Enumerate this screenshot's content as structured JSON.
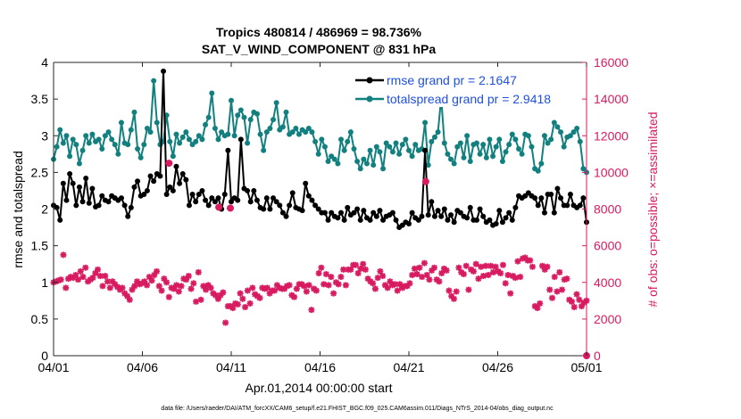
{
  "chart_data": {
    "type": "line",
    "title": "Tropics 480814 / 486969 = 98.736%",
    "subtitle": "SAT_V_WIND_COMPONENT @ 831 hPa",
    "xlabel": "Apr.01,2014 00:00:00 start",
    "ylabel_left": "rmse and totalspread",
    "ylabel_right": "# of obs: o=possible; ×=assimilated",
    "footnote": "data file: /Users/raeder/DAI/ATM_forcXX/CAM6_setup/f.e21.FHIST_BGC.f09_025.CAM6assim.011/Diags_NTrS_2014-04/obs_diag_output.nc",
    "x_ticks": [
      "04/01",
      "04/06",
      "04/11",
      "04/16",
      "04/21",
      "04/26",
      "05/01"
    ],
    "x_tick_days": [
      0,
      5,
      10,
      15,
      20,
      25,
      30
    ],
    "xlim_days": [
      0,
      30
    ],
    "ylim_left": [
      0,
      4
    ],
    "yticks_left": [
      "0",
      "0.5",
      "1",
      "1.5",
      "2",
      "2.5",
      "3",
      "3.5",
      "4"
    ],
    "ylim_right": [
      0,
      16000
    ],
    "yticks_right": [
      "0",
      "2000",
      "4000",
      "6000",
      "8000",
      "10000",
      "12000",
      "14000",
      "16000"
    ],
    "colors": {
      "rmse": "#000000",
      "spread": "#138080",
      "obs": "#d81b60",
      "legend_text": "#1f4fe0"
    },
    "x_step_days": 0.25,
    "series": [
      {
        "name": "rmse grand pr = 2.1647",
        "axis": "left",
        "values": [
          2.05,
          2.02,
          1.85,
          2.35,
          2.12,
          2.48,
          2.35,
          2.05,
          2.3,
          2.1,
          2.42,
          2.08,
          2.28,
          2.03,
          2.05,
          2.18,
          2.12,
          2.1,
          2.18,
          2.15,
          2.12,
          2.15,
          2.05,
          1.9,
          2.02,
          2.3,
          2.38,
          2.18,
          2.2,
          2.25,
          2.45,
          2.38,
          2.48,
          2.45,
          3.88,
          2.2,
          2.3,
          2.25,
          2.58,
          2.35,
          2.48,
          2.4,
          2.05,
          2.2,
          2.1,
          2.2,
          2.25,
          2.12,
          2.05,
          2.15,
          2.1,
          2.15,
          2.0,
          2.2,
          2.8,
          2.1,
          2.15,
          2.12,
          2.95,
          2.28,
          2.25,
          2.1,
          2.25,
          2.12,
          2.02,
          2.0,
          2.15,
          2.0,
          2.15,
          2.1,
          2.05,
          1.95,
          1.9,
          2.05,
          2.22,
          2.02,
          2.0,
          1.98,
          2.35,
          2.18,
          2.12,
          2.05,
          2.0,
          1.95,
          1.95,
          1.85,
          1.95,
          1.9,
          1.88,
          1.95,
          1.85,
          2.02,
          1.92,
          1.95,
          2.0,
          1.85,
          1.98,
          1.88,
          1.85,
          1.95,
          1.9,
          1.98,
          1.85,
          1.9,
          1.92,
          1.95,
          1.85,
          1.75,
          1.78,
          1.82,
          1.8,
          1.95,
          1.88,
          1.85,
          1.9,
          2.8,
          1.92,
          2.1,
          1.9,
          1.98,
          1.9,
          2.0,
          1.85,
          1.92,
          1.82,
          1.98,
          1.95,
          1.9,
          1.88,
          2.02,
          1.85,
          1.85,
          2.0,
          1.9,
          1.82,
          1.85,
          1.78,
          1.8,
          1.98,
          1.82,
          1.88,
          1.95,
          1.85,
          2.02,
          2.18,
          2.15,
          2.18,
          2.22,
          2.18,
          2.15,
          2.05,
          2.15,
          1.95,
          2.2,
          2.2,
          1.95,
          2.28,
          2.15,
          2.05,
          2.05,
          2.2,
          2.05,
          2.02,
          2.05,
          2.15,
          1.82
        ]
      },
      {
        "name": "totalspread grand pr = 2.9418",
        "axis": "left",
        "values": [
          2.68,
          2.85,
          3.08,
          2.9,
          3.0,
          2.72,
          2.95,
          2.88,
          2.62,
          2.8,
          3.0,
          2.9,
          3.02,
          2.92,
          2.95,
          2.82,
          3.0,
          3.05,
          2.95,
          2.88,
          2.75,
          3.18,
          2.9,
          2.88,
          3.08,
          3.32,
          2.82,
          2.7,
          2.88,
          3.1,
          3.05,
          3.75,
          3.18,
          2.88,
          2.92,
          3.28,
          2.92,
          2.72,
          3.02,
          2.9,
          2.98,
          3.05,
          2.95,
          2.88,
          2.92,
          3.0,
          2.95,
          3.15,
          3.25,
          3.58,
          3.1,
          2.95,
          3.05,
          3.0,
          3.02,
          3.48,
          3.0,
          3.28,
          3.35,
          3.25,
          2.9,
          3.22,
          3.32,
          3.3,
          3.02,
          2.8,
          3.05,
          3.1,
          3.22,
          3.45,
          3.08,
          3.12,
          3.32,
          3.02,
          3.05,
          3.1,
          3.02,
          3.08,
          3.05,
          3.1,
          3.05,
          2.92,
          2.75,
          2.95,
          2.85,
          2.65,
          2.72,
          2.68,
          2.62,
          2.95,
          2.8,
          2.92,
          3.05,
          2.82,
          2.65,
          2.55,
          2.68,
          2.62,
          2.8,
          2.6,
          2.85,
          2.78,
          2.55,
          2.9,
          2.85,
          2.78,
          2.9,
          2.75,
          2.88,
          2.95,
          2.8,
          2.72,
          2.88,
          2.8,
          2.82,
          3.18,
          2.6,
          2.92,
          2.98,
          3.05,
          3.52,
          2.9,
          2.75,
          2.68,
          2.62,
          2.85,
          2.9,
          2.7,
          3.0,
          2.65,
          2.88,
          2.9,
          2.75,
          2.88,
          2.7,
          2.95,
          2.72,
          2.85,
          2.95,
          2.65,
          2.78,
          2.88,
          3.02,
          2.95,
          2.82,
          2.75,
          3.02,
          3.0,
          2.85,
          2.55,
          2.52,
          2.62,
          3.0,
          2.9,
          2.95,
          3.18,
          3.12,
          3.05,
          2.85,
          2.98,
          3.0,
          3.05,
          3.1,
          2.92,
          2.55,
          2.5
        ]
      },
      {
        "name": "obs count",
        "axis": "right",
        "values": [
          4000,
          4050,
          4100,
          4150,
          5500,
          3700,
          4200,
          4300,
          4250,
          4400,
          4150,
          4600,
          4300,
          4800,
          4050,
          4150,
          4250,
          4500,
          4700,
          4350,
          3800,
          4350,
          4050,
          3700,
          4050,
          3900,
          3750,
          3600,
          3700,
          3400,
          3250,
          3050,
          3600,
          3800,
          4050,
          3900,
          3950,
          4050,
          3850,
          4300,
          4100,
          4400,
          4600,
          3800,
          3550,
          4200,
          4000,
          3200,
          3700,
          3650,
          3850,
          3500,
          3800,
          4200,
          4150,
          4350,
          3650,
          3950,
          2950,
          4550,
          3050,
          3800,
          3600,
          3850,
          3700,
          3400,
          3300,
          3100,
          3300,
          3450,
          1800,
          2700,
          2700,
          2600,
          2850,
          2800,
          3400,
          3100,
          2650,
          3550,
          2850,
          3700,
          3350,
          3250,
          3150,
          3700,
          3650,
          3700,
          3400,
          3550,
          3550,
          3850,
          3700,
          3650,
          3650,
          3800,
          3850,
          3300,
          3200,
          3650,
          3900,
          3900,
          3800,
          3500,
          3850,
          2500,
          3650,
          3550,
          4500,
          4800,
          3900,
          4450,
          3850,
          4300,
          3400,
          4000,
          3900,
          4300,
          4700,
          3850,
          4700,
          4700,
          4950,
          4950,
          4500,
          4750,
          5000,
          4700,
          4200,
          4050,
          3950,
          3650,
          4250,
          4600,
          4350,
          3850,
          3700,
          4050,
          3850,
          3900,
          3550,
          3900,
          3700,
          3800,
          3800,
          3950,
          4400,
          4750,
          4450,
          4800,
          4300,
          5050,
          4400,
          4150,
          4650,
          4800,
          4150,
          4050,
          4500,
          4750,
          4650,
          3550,
          3250,
          3100,
          3500,
          4800,
          4550,
          4450,
          4900,
          3600,
          4700,
          4600,
          5000,
          4200,
          4850,
          4350,
          4900,
          4400,
          4900,
          4550,
          4850,
          4600,
          4500,
          4950,
          3950,
          4400,
          3400,
          4350,
          4250,
          5150,
          4300,
          5300,
          5350,
          5200,
          5200,
          4850,
          2700,
          2600,
          2850,
          4900,
          4700,
          4850,
          3600,
          3150,
          4300,
          3500,
          4550,
          3600,
          4150,
          4200,
          3050,
          2950,
          2650,
          3350,
          3050,
          2700,
          2900,
          3000
        ]
      },
      {
        "name": "assimilated highlight",
        "axis": "mixed",
        "points": [
          {
            "day": 6.5,
            "value": 10500,
            "axis": "right"
          },
          {
            "day": 9.3,
            "value": 8100,
            "axis": "right"
          },
          {
            "day": 9.95,
            "value": 8050,
            "axis": "right"
          },
          {
            "day": 20.95,
            "value": 9500,
            "axis": "right"
          },
          {
            "day": 30.0,
            "value": 0,
            "axis": "right"
          }
        ]
      }
    ]
  }
}
